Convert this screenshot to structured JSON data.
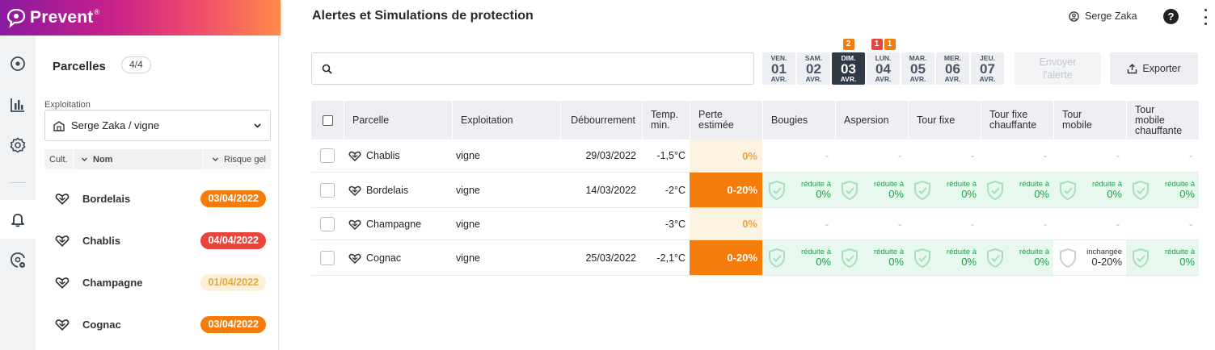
{
  "brand": {
    "name": "Prevent",
    "mark": "®"
  },
  "rail": {
    "items": [
      {
        "icon": "map-pin-icon"
      },
      {
        "icon": "bar-chart-icon"
      },
      {
        "icon": "gear-icon"
      },
      {
        "icon": "bell-icon",
        "active": true
      },
      {
        "icon": "shield-settings-icon"
      }
    ]
  },
  "panel": {
    "title": "Parcelles",
    "count": "4/4",
    "exploitation_label": "Exploitation",
    "exploitation_value": "Serge Zaka / vigne",
    "sort": {
      "cult": "Cult.",
      "nom": "Nom",
      "risque": "Risque gel"
    },
    "items": [
      {
        "name": "Bordelais",
        "date": "03/04/2022",
        "level": "orange"
      },
      {
        "name": "Chablis",
        "date": "04/04/2022",
        "level": "red"
      },
      {
        "name": "Champagne",
        "date": "01/04/2022",
        "level": "light"
      },
      {
        "name": "Cognac",
        "date": "03/04/2022",
        "level": "orange"
      }
    ]
  },
  "header": {
    "title": "Alertes et Simulations de protection",
    "user": "Serge Zaka",
    "help": "?"
  },
  "search": {
    "placeholder": ""
  },
  "days": [
    {
      "dn": "VEN.",
      "num": "01",
      "mo": "AVR."
    },
    {
      "dn": "SAM.",
      "num": "02",
      "mo": "AVR."
    },
    {
      "dn": "DIM.",
      "num": "03",
      "mo": "AVR.",
      "active": true,
      "alerts": [
        {
          "n": "2",
          "color": "orange"
        }
      ]
    },
    {
      "dn": "LUN.",
      "num": "04",
      "mo": "AVR.",
      "alerts": [
        {
          "n": "1",
          "color": "red"
        },
        {
          "n": "1",
          "color": "orange"
        }
      ]
    },
    {
      "dn": "MAR.",
      "num": "05",
      "mo": "AVR."
    },
    {
      "dn": "MER.",
      "num": "06",
      "mo": "AVR."
    },
    {
      "dn": "JEU.",
      "num": "07",
      "mo": "AVR."
    }
  ],
  "actions": {
    "send_line1": "Envoyer",
    "send_line2": "l'alerte",
    "export": "Exporter"
  },
  "table": {
    "headers": {
      "parcelle": "Parcelle",
      "exploitation": "Exploitation",
      "debourrement": "Débourrement",
      "temp_1": "Temp.",
      "temp_2": "min.",
      "perte_1": "Perte",
      "perte_2": "estimée",
      "bougies": "Bougies",
      "aspersion": "Aspersion",
      "tour_fixe": "Tour fixe",
      "tfc_1": "Tour fixe",
      "tfc_2": "chauffante",
      "tm_1": "Tour",
      "tm_2": "mobile",
      "tmc_1": "Tour",
      "tmc_2": "mobile",
      "tmc_3": "chauffante"
    },
    "rows": [
      {
        "parcelle": "Chablis",
        "exploitation": "vigne",
        "debourrement": "29/03/2022",
        "temp": "-1,5°C",
        "perte": "0%",
        "loss": "light",
        "protections": []
      },
      {
        "parcelle": "Bordelais",
        "exploitation": "vigne",
        "debourrement": "14/03/2022",
        "temp": "-2°C",
        "perte": "0-20%",
        "loss": "strong",
        "protections": [
          {
            "a": "réduite à",
            "b": "0%"
          },
          {
            "a": "réduite à",
            "b": "0%"
          },
          {
            "a": "réduite à",
            "b": "0%"
          },
          {
            "a": "réduite à",
            "b": "0%"
          },
          {
            "a": "réduite à",
            "b": "0%"
          },
          {
            "a": "réduite à",
            "b": "0%"
          }
        ]
      },
      {
        "parcelle": "Champagne",
        "exploitation": "vigne",
        "debourrement": "",
        "temp": "-3°C",
        "perte": "0%",
        "loss": "light",
        "protections": []
      },
      {
        "parcelle": "Cognac",
        "exploitation": "vigne",
        "debourrement": "25/03/2022",
        "temp": "-2,1°C",
        "perte": "0-20%",
        "loss": "strong",
        "protections": [
          {
            "a": "réduite à",
            "b": "0%"
          },
          {
            "a": "réduite à",
            "b": "0%"
          },
          {
            "a": "réduite à",
            "b": "0%"
          },
          {
            "a": "réduite à",
            "b": "0%"
          },
          {
            "a": "inchangée",
            "b": "0-20%",
            "unchanged": true
          },
          {
            "a": "réduite à",
            "b": "0%"
          }
        ]
      }
    ],
    "dash": "-"
  }
}
